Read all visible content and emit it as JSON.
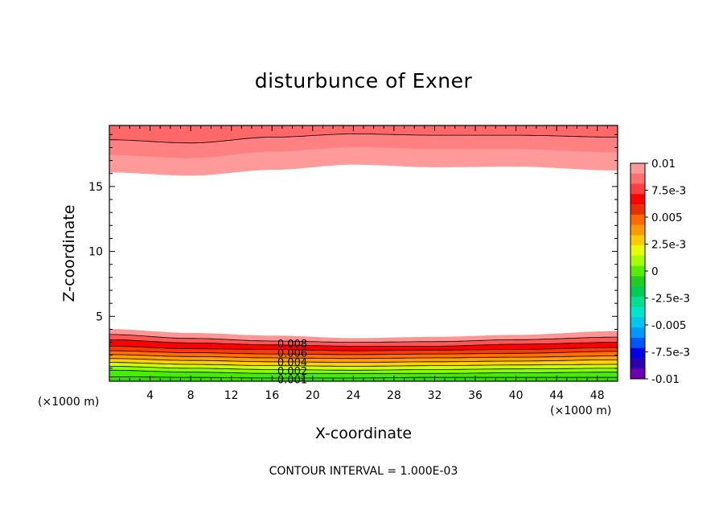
{
  "chart_data": {
    "type": "contour",
    "title": "disturbunce of Exner",
    "xlabel": "X-coordinate",
    "ylabel": "Z-coordinate",
    "x_unit": "(×1000 m)",
    "y_unit": "(×1000 m)",
    "xlim": [
      0,
      50
    ],
    "ylim": [
      0,
      19.7
    ],
    "x_ticks": [
      4,
      8,
      12,
      16,
      20,
      24,
      28,
      32,
      36,
      40,
      44,
      48
    ],
    "y_ticks": [
      5,
      10,
      15
    ],
    "contour_interval_text": "CONTOUR INTERVAL = 1.000E-03",
    "colorbar": {
      "labels": [
        "0.01",
        "7.5e-3",
        "0.005",
        "2.5e-3",
        "0",
        "-2.5e-3",
        "-0.005",
        "-7.5e-3",
        "-0.01"
      ],
      "colors": [
        "#ff9a9a",
        "#ff7070",
        "#ff4040",
        "#ff0000",
        "#e83000",
        "#ff6a00",
        "#ff9900",
        "#ffcc00",
        "#e6ff00",
        "#a6ff00",
        "#55ee00",
        "#22cc22",
        "#00cc55",
        "#00e090",
        "#00e6c8",
        "#00c8f0",
        "#0099ff",
        "#0055ff",
        "#0000e6",
        "#2a00b0",
        "#6a00b0"
      ]
    },
    "contour_labels": [
      {
        "text": "0.008",
        "x": 18,
        "z": 2.9
      },
      {
        "text": "0.006",
        "x": 18,
        "z": 2.2
      },
      {
        "text": "0.004",
        "x": 18,
        "z": 1.5
      },
      {
        "text": "0.002",
        "x": 18,
        "z": 0.8
      },
      {
        "text": "0.001",
        "x": 18,
        "z": 0.15
      }
    ],
    "lower_layer": {
      "description_levels": [
        0.0,
        0.001,
        0.002,
        0.003,
        0.004,
        0.005,
        0.006,
        0.007,
        0.008,
        0.009,
        0.01
      ],
      "colors": [
        "#33dd00",
        "#44ee00",
        "#88ff00",
        "#ccff00",
        "#ffd000",
        "#ffa000",
        "#ff7000",
        "#ff3a00",
        "#ff0000",
        "#ff5555",
        "#ff9595"
      ],
      "boundary_heights": [
        [
          0.0,
          0.35,
          0.85,
          1.15,
          1.45,
          1.75,
          2.05,
          2.35,
          2.7,
          3.2,
          3.6,
          4.0
        ],
        [
          0.0,
          0.3,
          0.7,
          1.0,
          1.3,
          1.6,
          1.9,
          2.2,
          2.5,
          2.95,
          3.3,
          3.7
        ],
        [
          0.0,
          0.25,
          0.6,
          0.9,
          1.2,
          1.5,
          1.8,
          2.1,
          2.45,
          2.8,
          3.1,
          3.5
        ],
        [
          0.0,
          0.25,
          0.6,
          0.85,
          1.15,
          1.45,
          1.75,
          2.05,
          2.35,
          2.7,
          3.0,
          3.3
        ],
        [
          0.0,
          0.3,
          0.6,
          0.9,
          1.2,
          1.5,
          1.8,
          2.1,
          2.4,
          2.7,
          3.05,
          3.4
        ],
        [
          0.0,
          0.3,
          0.65,
          0.95,
          1.25,
          1.55,
          1.85,
          2.15,
          2.45,
          2.85,
          3.2,
          3.55
        ],
        [
          0.0,
          0.3,
          0.7,
          1.0,
          1.3,
          1.65,
          1.95,
          2.3,
          2.6,
          3.0,
          3.4,
          3.85
        ]
      ],
      "x_positions": [
        0,
        8,
        16,
        24,
        32,
        40,
        50
      ]
    },
    "upper_layer": {
      "colors": [
        "#ff9a9a",
        "#ff8080",
        "#ff6868"
      ],
      "boundary_heights": [
        [
          16.1,
          17.45,
          18.6
        ],
        [
          15.85,
          17.2,
          18.35
        ],
        [
          16.3,
          17.7,
          18.8
        ],
        [
          16.7,
          18.05,
          19.05
        ],
        [
          16.5,
          17.9,
          18.95
        ],
        [
          16.55,
          17.9,
          18.95
        ],
        [
          16.25,
          17.65,
          18.8
        ]
      ],
      "x_positions": [
        0,
        8,
        16,
        24,
        32,
        40,
        50
      ]
    }
  }
}
